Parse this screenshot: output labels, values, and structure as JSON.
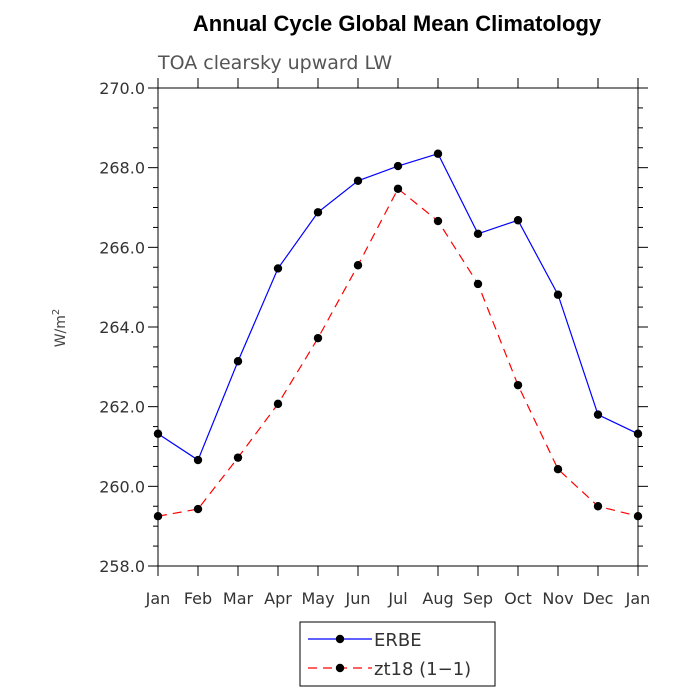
{
  "chart_data": {
    "type": "line",
    "title": "Annual Cycle Global Mean Climatology",
    "subtitle": "TOA clearsky upward LW",
    "ylabel_base": "W/m",
    "ylabel_sup": "2",
    "categories": [
      "Jan",
      "Feb",
      "Mar",
      "Apr",
      "May",
      "Jun",
      "Jul",
      "Aug",
      "Sep",
      "Oct",
      "Nov",
      "Dec",
      "Jan"
    ],
    "ylim": [
      258.0,
      270.0
    ],
    "yticks": [
      "258.0",
      "260.0",
      "262.0",
      "264.0",
      "266.0",
      "268.0",
      "270.0"
    ],
    "legend_position": "bottom-center",
    "series": [
      {
        "name": "ERBE",
        "color": "#0000ff",
        "dash": "solid",
        "values": [
          261.32,
          260.66,
          263.14,
          265.47,
          266.88,
          267.67,
          268.04,
          268.35,
          266.34,
          266.68,
          264.81,
          261.8,
          261.32
        ]
      },
      {
        "name": "zt18 (1−1)",
        "color": "#ff0000",
        "dash": "dashed",
        "values": [
          259.25,
          259.43,
          260.72,
          262.07,
          263.72,
          265.55,
          267.47,
          266.66,
          265.08,
          262.54,
          260.43,
          259.5,
          259.25
        ]
      }
    ]
  }
}
